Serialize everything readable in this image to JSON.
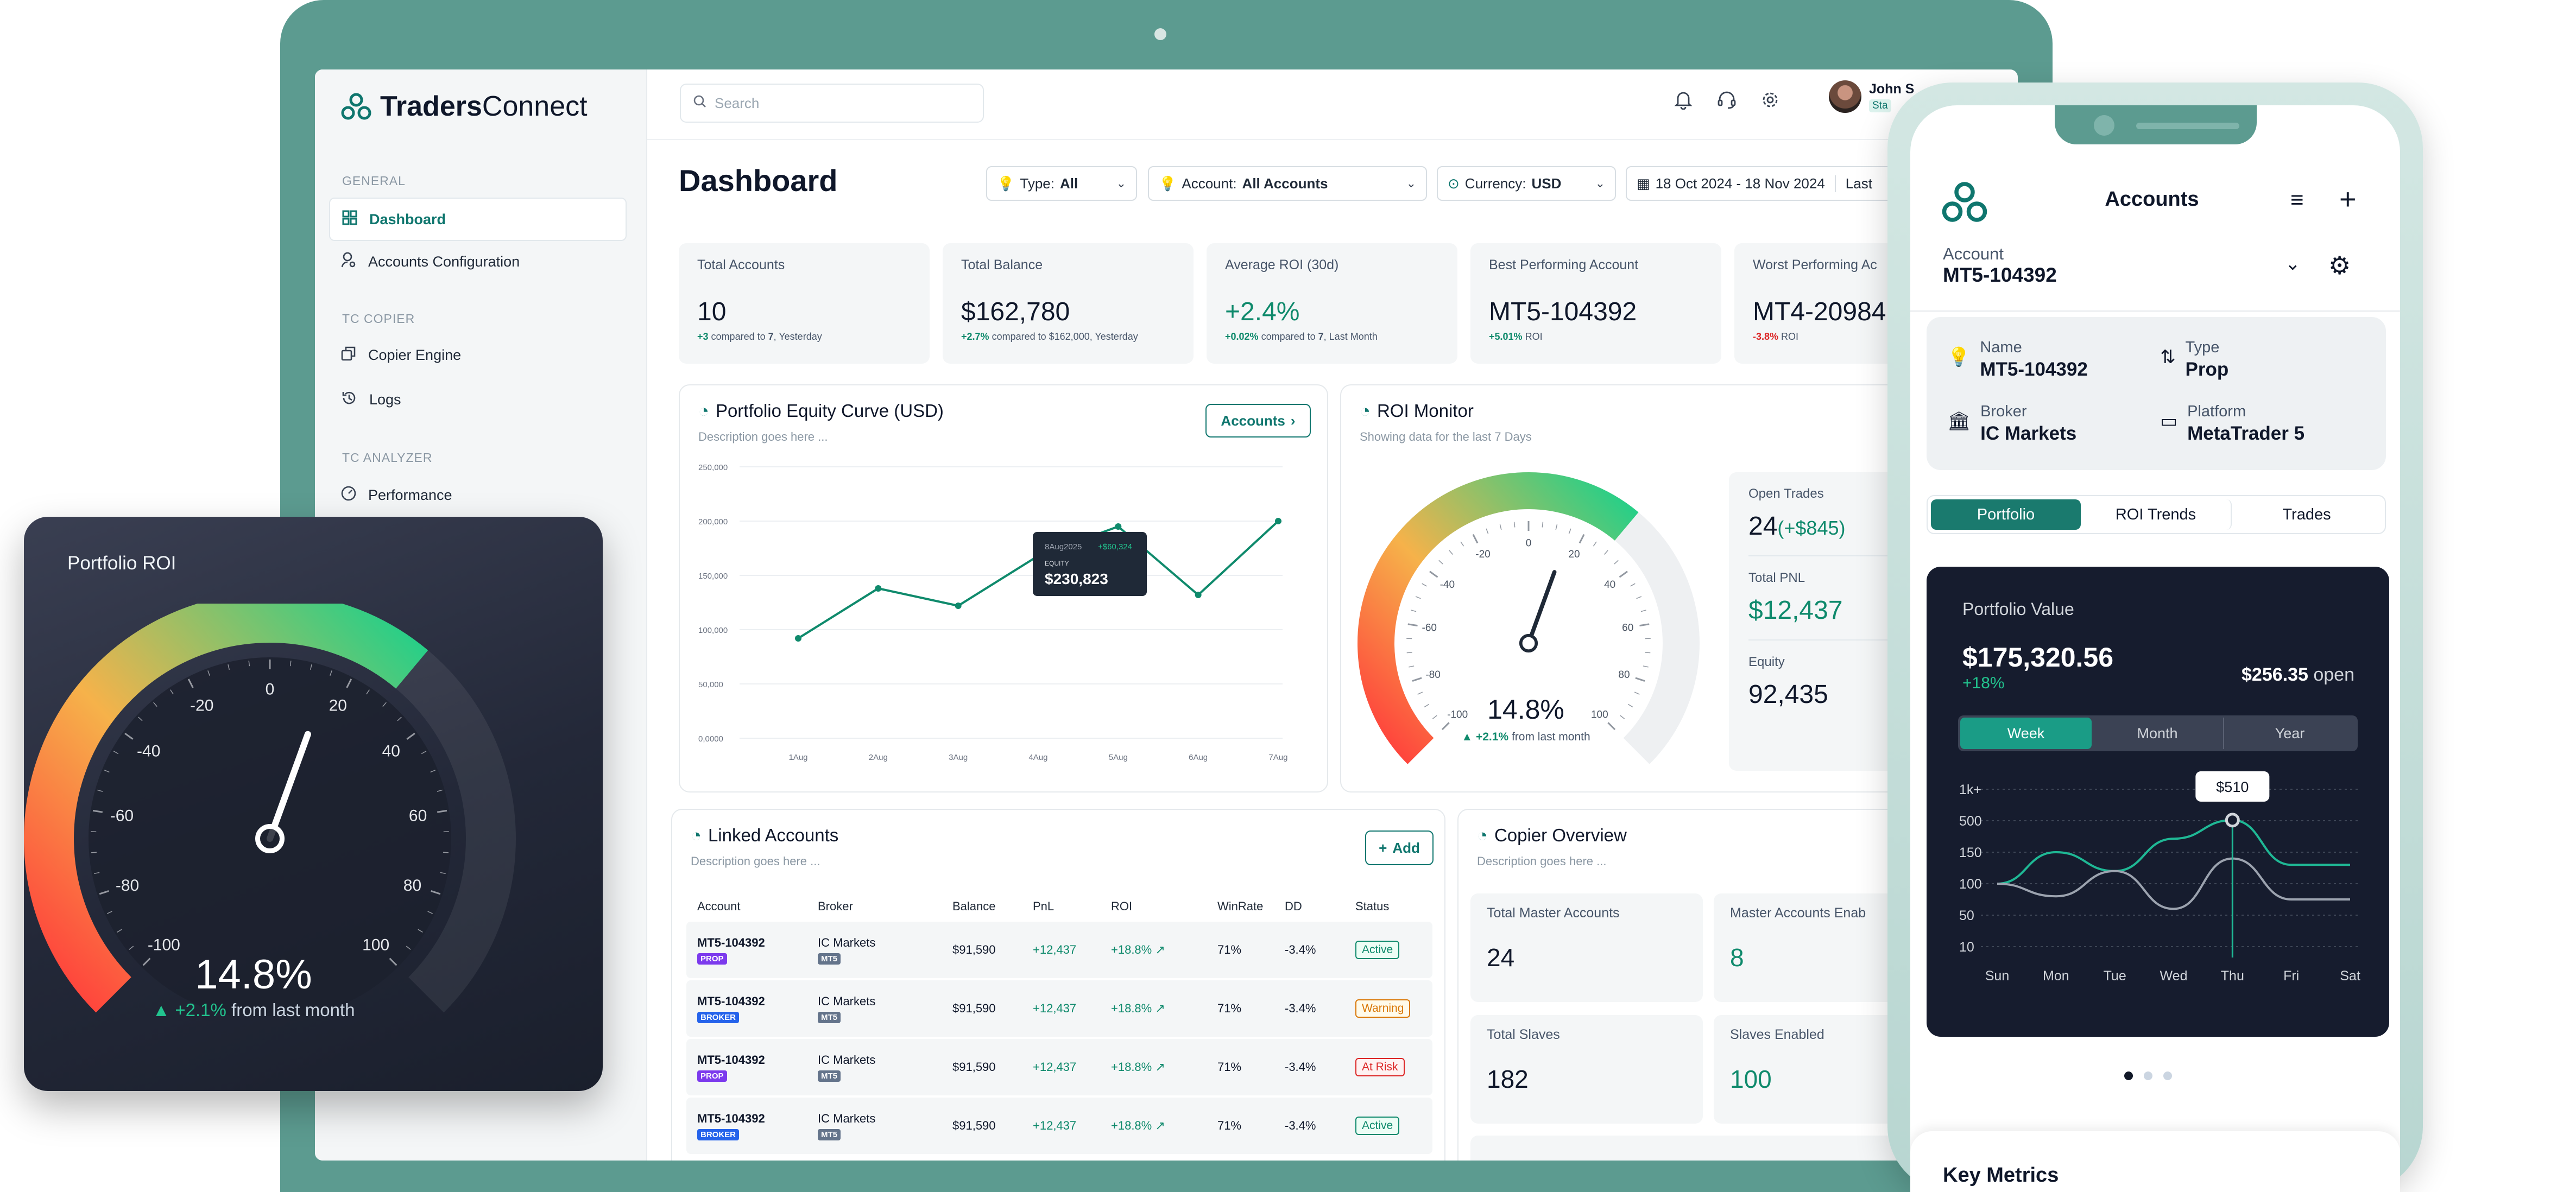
{
  "app": {
    "brand_prefix": "Traders",
    "brand_suffix": "Connect"
  },
  "colors": {
    "accent": "#0f766e",
    "laptop_frame": "#5c9b90",
    "positive": "#0f8a6c",
    "negative": "#dc2626"
  },
  "sidebar": {
    "sections": [
      "GENERAL",
      "TC COPIER",
      "TC ANALYZER"
    ],
    "items": [
      {
        "label": "Dashboard",
        "icon": "grid-icon",
        "active": true
      },
      {
        "label": "Accounts Configuration",
        "icon": "user-gear-icon"
      },
      {
        "label": "Copier Engine",
        "icon": "copy-icon"
      },
      {
        "label": "Logs",
        "icon": "history-icon"
      },
      {
        "label": "Performance",
        "icon": "gauge-icon"
      }
    ]
  },
  "topbar": {
    "search_placeholder": "Search",
    "user_name": "John S",
    "user_badge": "Sta"
  },
  "dashboard": {
    "title": "Dashboard",
    "filters": {
      "type_label": "Type:",
      "type_value": "All",
      "account_label": "Account:",
      "account_value": "All Accounts",
      "currency_label": "Currency:",
      "currency_value": "USD",
      "date_range": "18 Oct 2024 - 18 Nov 2024",
      "period": "Last"
    },
    "kpis": [
      {
        "label": "Total Accounts",
        "value": "10",
        "delta": "+3",
        "note": "compared to",
        "ref": "7",
        "suffix": ", Yesterday"
      },
      {
        "label": "Total Balance",
        "value": "$162,780",
        "delta": "+2.7%",
        "note": "compared to",
        "ref": "$162,000",
        "suffix": ", Yesterday"
      },
      {
        "label": "Average ROI (30d)",
        "value": "+2.4%",
        "delta": "+0.02%",
        "note": "compared to",
        "ref": "7",
        "suffix": ", Last Month"
      },
      {
        "label": "Best Performing Account",
        "value": "MT5-104392",
        "delta": "+5.01%",
        "note": "ROI",
        "ref": "",
        "suffix": ""
      },
      {
        "label": "Worst Performing Ac",
        "value": "MT4-20984",
        "delta": "-3.8%",
        "note": "ROI",
        "ref": "",
        "suffix": ""
      }
    ],
    "equity": {
      "title": "Portfolio Equity Curve (USD)",
      "desc": "Description goes here ...",
      "button": "Accounts",
      "tooltip_date": "8Aug2025",
      "tooltip_delta": "+$60,324",
      "tooltip_label": "EQUITY",
      "tooltip_value": "$230,823"
    },
    "roi_monitor": {
      "title": "ROI Monitor",
      "desc": "Showing data for the last 7 Days",
      "value": "14.8%",
      "delta": "+2.1%",
      "delta_note": "from last month",
      "open_trades_label": "Open Trades",
      "open_trades": "24",
      "open_trades_delta": "(+$845)",
      "pnl_label": "Total PNL",
      "pnl": "$12,437",
      "equity_label": "Equity",
      "equity": "92,435"
    },
    "linked": {
      "title": "Linked Accounts",
      "desc": "Description goes here ...",
      "add": "Add",
      "columns": [
        "Account",
        "Broker",
        "Balance",
        "PnL",
        "ROI",
        "WinRate",
        "DD",
        "Status"
      ],
      "rows": [
        {
          "account": "MT5-104392",
          "tag": "PROP",
          "broker": "IC Markets",
          "platform": "MT5",
          "balance": "$91,590",
          "pnl": "+12,437",
          "roi": "+18.8%",
          "winrate": "71%",
          "dd": "-3.4%",
          "status": "Active"
        },
        {
          "account": "MT5-104392",
          "tag": "BROKER",
          "broker": "IC Markets",
          "platform": "MT5",
          "balance": "$91,590",
          "pnl": "+12,437",
          "roi": "+18.8%",
          "winrate": "71%",
          "dd": "-3.4%",
          "status": "Warning"
        },
        {
          "account": "MT5-104392",
          "tag": "PROP",
          "broker": "IC Markets",
          "platform": "MT5",
          "balance": "$91,590",
          "pnl": "+12,437",
          "roi": "+18.8%",
          "winrate": "71%",
          "dd": "-3.4%",
          "status": "At Risk"
        },
        {
          "account": "MT5-104392",
          "tag": "BROKER",
          "broker": "IC Markets",
          "platform": "MT5",
          "balance": "$91,590",
          "pnl": "+12,437",
          "roi": "+18.8%",
          "winrate": "71%",
          "dd": "-3.4%",
          "status": "Active"
        }
      ]
    },
    "copier": {
      "title": "Copier Overview",
      "desc": "Description goes here ...",
      "stats": [
        {
          "label": "Total Master Accounts",
          "value": "24"
        },
        {
          "label": "Master Accounts Enab",
          "value": "8"
        },
        {
          "label": "Total Slaves",
          "value": "182"
        },
        {
          "label": "Slaves Enabled",
          "value": "100"
        }
      ]
    }
  },
  "roi_card": {
    "title": "Portfolio ROI",
    "value": "14.8%",
    "delta": "+2.1%",
    "delta_note": "from last month"
  },
  "phone": {
    "title": "Accounts",
    "account_label": "Account",
    "account_value": "MT5-104392",
    "info": [
      {
        "label": "Name",
        "value": "MT5-104392",
        "icon": "bulb-icon"
      },
      {
        "label": "Type",
        "value": "Prop",
        "icon": "sort-icon"
      },
      {
        "label": "Broker",
        "value": "IC Markets",
        "icon": "bank-icon"
      },
      {
        "label": "Platform",
        "value": "MetaTrader 5",
        "icon": "window-icon"
      }
    ],
    "tabs": [
      "Portfolio",
      "ROI Trends",
      "Trades"
    ],
    "portfolio": {
      "label": "Portfolio Value",
      "value": "$175,320.56",
      "delta": "+18%",
      "open_value": "$256.35",
      "open_label": "open",
      "ranges": [
        "Week",
        "Month",
        "Year"
      ],
      "tooltip": "$510"
    },
    "next_section": "Key Metrics"
  },
  "chart_data": [
    {
      "type": "line",
      "title": "Portfolio Equity Curve (USD)",
      "x": [
        "1Aug",
        "2Aug",
        "3Aug",
        "4Aug",
        "5Aug",
        "6Aug",
        "7Aug"
      ],
      "series": [
        {
          "values": [
            92000,
            138000,
            122000,
            168000,
            195000,
            132000,
            200000
          ]
        }
      ],
      "yticks": [
        "250,000",
        "200,000",
        "150,000",
        "100,000",
        "50,000",
        "0,0000"
      ],
      "ylim": [
        0,
        250000
      ]
    },
    {
      "type": "gauge",
      "title": "ROI Monitor",
      "value": 14.8,
      "ticks": [
        "-100",
        "-80",
        "-60",
        "-40",
        "-20",
        "0",
        "20",
        "40",
        "60",
        "80",
        "100"
      ],
      "range": [
        -100,
        100
      ]
    },
    {
      "type": "line",
      "x": [
        "Sun",
        "Mon",
        "Tue",
        "Wed",
        "Thu",
        "Fri",
        "Sat"
      ],
      "ytick_labels": [
        "1k+",
        "500",
        "150",
        "100",
        "50",
        "10"
      ],
      "series": [
        {
          "values": [
            100,
            150,
            120,
            300,
            510,
            130,
            130
          ]
        },
        {
          "values": [
            100,
            80,
            120,
            60,
            140,
            75,
            75
          ]
        }
      ]
    }
  ]
}
